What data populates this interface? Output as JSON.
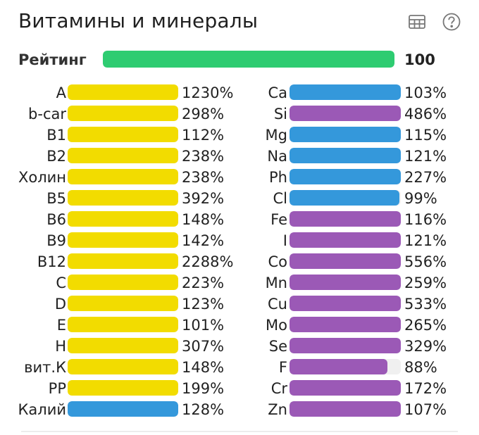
{
  "header": {
    "title": "Витамины и минералы",
    "table_icon": "table-icon",
    "help_icon": "help-icon"
  },
  "rating": {
    "label": "Рейтинг",
    "value": "100",
    "level_percent": 100,
    "color": "#2ecc71"
  },
  "colors": {
    "vitamin": "#f2dc00",
    "mineral_blue": "#3498db",
    "mineral_purple": "#9b59b6",
    "track": "#f0f0f0"
  },
  "vitamins": [
    {
      "name": "A",
      "value": "1230%",
      "level": 100,
      "color": "#f2dc00"
    },
    {
      "name": "b-car",
      "value": "298%",
      "level": 100,
      "color": "#f2dc00"
    },
    {
      "name": "B1",
      "value": "112%",
      "level": 100,
      "color": "#f2dc00"
    },
    {
      "name": "B2",
      "value": "238%",
      "level": 100,
      "color": "#f2dc00"
    },
    {
      "name": "Холин",
      "value": "238%",
      "level": 100,
      "color": "#f2dc00"
    },
    {
      "name": "B5",
      "value": "392%",
      "level": 100,
      "color": "#f2dc00"
    },
    {
      "name": "B6",
      "value": "148%",
      "level": 100,
      "color": "#f2dc00"
    },
    {
      "name": "B9",
      "value": "142%",
      "level": 100,
      "color": "#f2dc00"
    },
    {
      "name": "B12",
      "value": "2288%",
      "level": 100,
      "color": "#f2dc00"
    },
    {
      "name": "C",
      "value": "223%",
      "level": 100,
      "color": "#f2dc00"
    },
    {
      "name": "D",
      "value": "123%",
      "level": 100,
      "color": "#f2dc00"
    },
    {
      "name": "E",
      "value": "101%",
      "level": 100,
      "color": "#f2dc00"
    },
    {
      "name": "H",
      "value": "307%",
      "level": 100,
      "color": "#f2dc00"
    },
    {
      "name": "вит.К",
      "value": "148%",
      "level": 100,
      "color": "#f2dc00"
    },
    {
      "name": "PP",
      "value": "199%",
      "level": 100,
      "color": "#f2dc00"
    },
    {
      "name": "Калий",
      "value": "128%",
      "level": 100,
      "color": "#3498db"
    }
  ],
  "minerals": [
    {
      "name": "Ca",
      "value": "103%",
      "level": 100,
      "color": "#3498db"
    },
    {
      "name": "Si",
      "value": "486%",
      "level": 100,
      "color": "#9b59b6"
    },
    {
      "name": "Mg",
      "value": "115%",
      "level": 100,
      "color": "#3498db"
    },
    {
      "name": "Na",
      "value": "121%",
      "level": 100,
      "color": "#3498db"
    },
    {
      "name": "Ph",
      "value": "227%",
      "level": 100,
      "color": "#3498db"
    },
    {
      "name": "Cl",
      "value": "99%",
      "level": 99,
      "color": "#3498db"
    },
    {
      "name": "Fe",
      "value": "116%",
      "level": 100,
      "color": "#9b59b6"
    },
    {
      "name": "I",
      "value": "121%",
      "level": 100,
      "color": "#9b59b6"
    },
    {
      "name": "Co",
      "value": "556%",
      "level": 100,
      "color": "#9b59b6"
    },
    {
      "name": "Mn",
      "value": "259%",
      "level": 100,
      "color": "#9b59b6"
    },
    {
      "name": "Cu",
      "value": "533%",
      "level": 100,
      "color": "#9b59b6"
    },
    {
      "name": "Mo",
      "value": "265%",
      "level": 100,
      "color": "#9b59b6"
    },
    {
      "name": "Se",
      "value": "329%",
      "level": 100,
      "color": "#9b59b6"
    },
    {
      "name": "F",
      "value": "88%",
      "level": 88,
      "color": "#9b59b6"
    },
    {
      "name": "Cr",
      "value": "172%",
      "level": 100,
      "color": "#9b59b6"
    },
    {
      "name": "Zn",
      "value": "107%",
      "level": 100,
      "color": "#9b59b6"
    }
  ]
}
